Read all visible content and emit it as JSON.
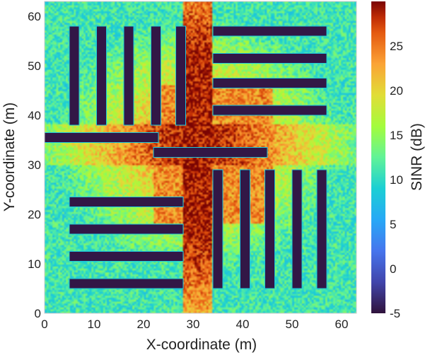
{
  "chart_data": {
    "type": "heatmap",
    "title": "",
    "xlabel": "X-coordinate (m)",
    "ylabel": "Y-coordinate (m)",
    "xlim": [
      0,
      63
    ],
    "ylim": [
      0,
      63
    ],
    "x_ticks": [
      0,
      10,
      20,
      30,
      40,
      50,
      60
    ],
    "y_ticks": [
      0,
      10,
      20,
      30,
      40,
      50,
      60
    ],
    "colorbar": {
      "label": "SINR (dB)",
      "range": [
        -5,
        30
      ],
      "ticks": [
        -5,
        0,
        5,
        10,
        15,
        20,
        25
      ],
      "colormap": "turbo"
    },
    "transmitter_street": {
      "vertical_x_range": [
        28,
        34
      ],
      "horizontal_y_range": [
        30,
        38
      ]
    },
    "buildings": [
      {
        "x0": 5,
        "x1": 7,
        "y0": 38,
        "y1": 58
      },
      {
        "x0": 10.5,
        "x1": 12.5,
        "y0": 38,
        "y1": 58
      },
      {
        "x0": 16,
        "x1": 18,
        "y0": 38,
        "y1": 58
      },
      {
        "x0": 21.5,
        "x1": 23.5,
        "y0": 38,
        "y1": 58
      },
      {
        "x0": 26.5,
        "x1": 28.5,
        "y0": 38,
        "y1": 58
      },
      {
        "x0": 34,
        "x1": 57,
        "y0": 56,
        "y1": 58
      },
      {
        "x0": 34,
        "x1": 57,
        "y0": 50.5,
        "y1": 52.5
      },
      {
        "x0": 34,
        "x1": 57,
        "y0": 45.5,
        "y1": 47.5
      },
      {
        "x0": 34,
        "x1": 57,
        "y0": 40,
        "y1": 42
      },
      {
        "x0": 0,
        "x1": 23,
        "y0": 34.5,
        "y1": 36.5
      },
      {
        "x0": 22,
        "x1": 45,
        "y0": 31.5,
        "y1": 33.5
      },
      {
        "x0": 5,
        "x1": 28,
        "y0": 21.5,
        "y1": 23.5
      },
      {
        "x0": 5,
        "x1": 28,
        "y0": 16,
        "y1": 18
      },
      {
        "x0": 5,
        "x1": 28,
        "y0": 10.5,
        "y1": 12.5
      },
      {
        "x0": 5,
        "x1": 28,
        "y0": 5,
        "y1": 7
      },
      {
        "x0": 34,
        "x1": 36,
        "y0": 5,
        "y1": 29
      },
      {
        "x0": 39.5,
        "x1": 41.5,
        "y0": 5,
        "y1": 29
      },
      {
        "x0": 44.5,
        "x1": 46.5,
        "y0": 5,
        "y1": 29
      },
      {
        "x0": 50,
        "x1": 52,
        "y0": 5,
        "y1": 29
      },
      {
        "x0": 55,
        "x1": 57,
        "y0": 5,
        "y1": 29
      }
    ]
  }
}
